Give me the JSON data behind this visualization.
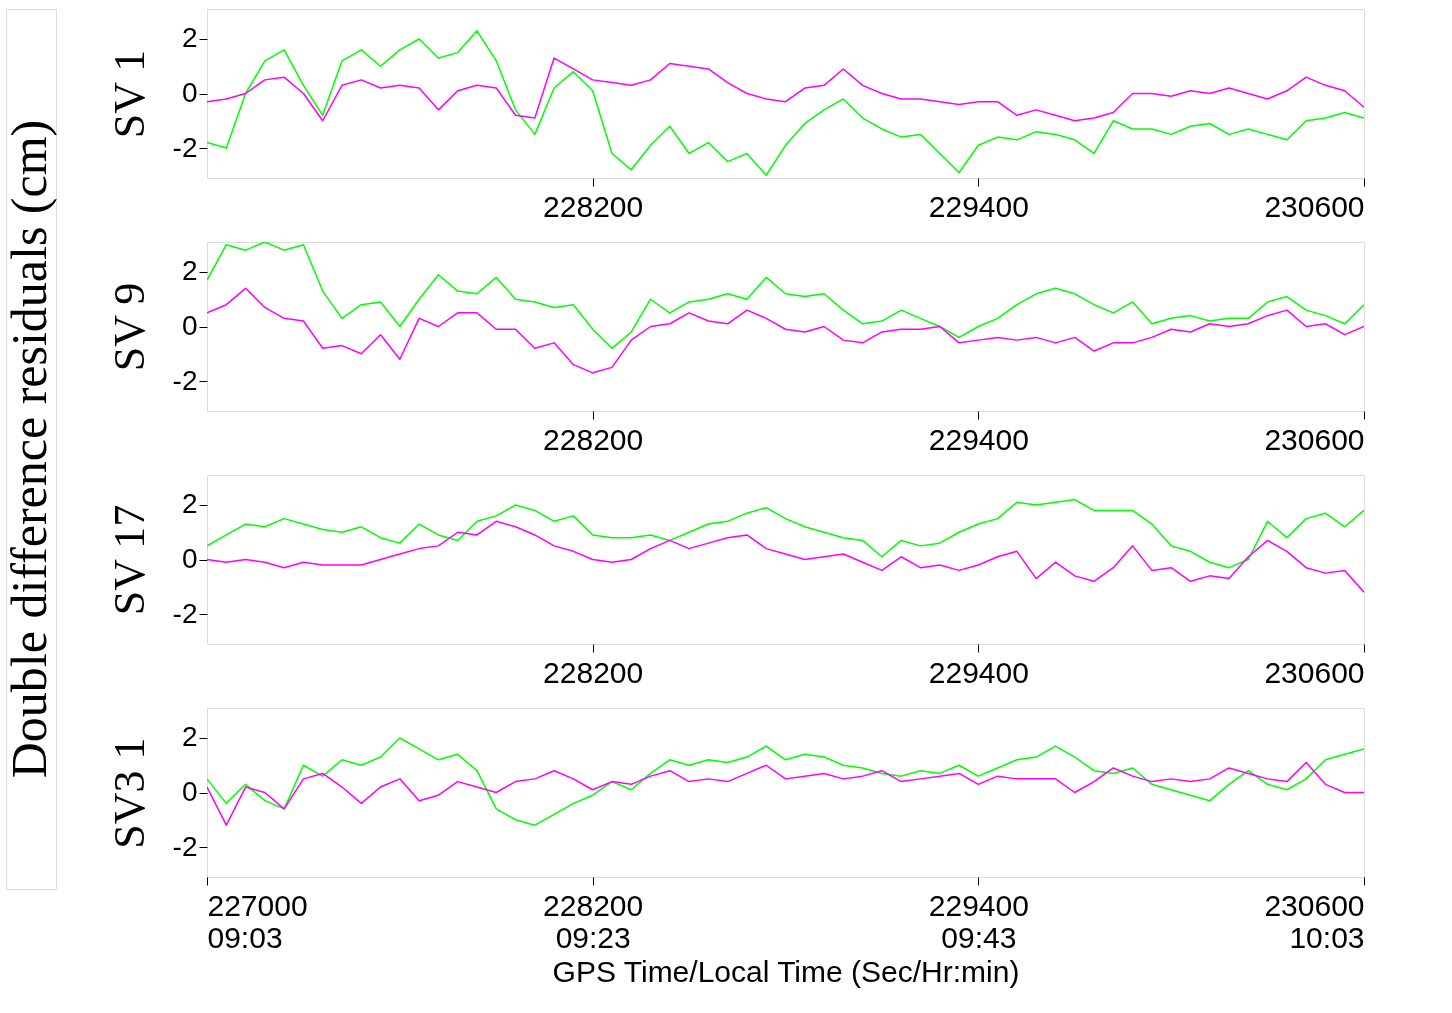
{
  "chart_data": [
    {
      "type": "line",
      "ylabel": "SV 1",
      "annotations": [
        "Double difference residuals (cm)"
      ],
      "xlim": [
        227000,
        230600
      ],
      "xticks": [
        228200,
        229400,
        230600
      ],
      "ylim": [
        -3.1,
        3.1
      ],
      "yticks": [
        -2,
        0,
        2
      ],
      "grid": false,
      "legend": false,
      "x": [
        227000,
        227060,
        227120,
        227180,
        227240,
        227300,
        227360,
        227420,
        227480,
        227540,
        227600,
        227660,
        227720,
        227780,
        227840,
        227900,
        227960,
        228020,
        228080,
        228140,
        228200,
        228260,
        228320,
        228380,
        228440,
        228500,
        228560,
        228620,
        228680,
        228740,
        228800,
        228860,
        228920,
        228980,
        229040,
        229100,
        229160,
        229220,
        229280,
        229340,
        229400,
        229460,
        229520,
        229580,
        229640,
        229700,
        229760,
        229820,
        229880,
        229940,
        230000,
        230060,
        230120,
        230180,
        230240,
        230300,
        230360,
        230420,
        230480,
        230540,
        230600
      ],
      "series": [
        {
          "color": "#00ff00",
          "values": [
            -1.8,
            -2.0,
            0.0,
            1.2,
            1.6,
            0.3,
            -0.8,
            1.2,
            1.6,
            1.0,
            1.6,
            2.0,
            1.3,
            1.5,
            2.3,
            1.2,
            -0.6,
            -1.5,
            0.2,
            0.8,
            0.1,
            -2.2,
            -2.8,
            -1.9,
            -1.2,
            -2.2,
            -1.8,
            -2.5,
            -2.2,
            -3.0,
            -1.9,
            -1.1,
            -0.6,
            -0.2,
            -0.9,
            -1.3,
            -1.6,
            -1.5,
            -2.2,
            -2.9,
            -1.9,
            -1.6,
            -1.7,
            -1.4,
            -1.5,
            -1.7,
            -2.2,
            -1.0,
            -1.3,
            -1.3,
            -1.5,
            -1.2,
            -1.1,
            -1.5,
            -1.3,
            -1.5,
            -1.7,
            -1.0,
            -0.9,
            -0.7,
            -0.9
          ]
        },
        {
          "color": "#ff00ff",
          "values": [
            -0.3,
            -0.2,
            0.0,
            0.5,
            0.6,
            0.0,
            -1.0,
            0.3,
            0.5,
            0.2,
            0.3,
            0.2,
            -0.6,
            0.1,
            0.3,
            0.2,
            -0.8,
            -0.9,
            1.3,
            0.9,
            0.5,
            0.4,
            0.3,
            0.5,
            1.1,
            1.0,
            0.9,
            0.4,
            0.0,
            -0.2,
            -0.3,
            0.2,
            0.3,
            0.9,
            0.3,
            0.0,
            -0.2,
            -0.2,
            -0.3,
            -0.4,
            -0.3,
            -0.3,
            -0.8,
            -0.6,
            -0.8,
            -1.0,
            -0.9,
            -0.7,
            0.0,
            0.0,
            -0.1,
            0.1,
            0.0,
            0.2,
            0.0,
            -0.2,
            0.1,
            0.6,
            0.3,
            0.1,
            -0.5
          ]
        }
      ]
    },
    {
      "type": "line",
      "ylabel": "SV 9",
      "xlim": [
        227000,
        230600
      ],
      "xticks": [
        228200,
        229400,
        230600
      ],
      "ylim": [
        -3.1,
        3.1
      ],
      "yticks": [
        -2,
        0,
        2
      ],
      "grid": false,
      "legend": false,
      "x": [
        227000,
        227060,
        227120,
        227180,
        227240,
        227300,
        227360,
        227420,
        227480,
        227540,
        227600,
        227660,
        227720,
        227780,
        227840,
        227900,
        227960,
        228020,
        228080,
        228140,
        228200,
        228260,
        228320,
        228380,
        228440,
        228500,
        228560,
        228620,
        228680,
        228740,
        228800,
        228860,
        228920,
        228980,
        229040,
        229100,
        229160,
        229220,
        229280,
        229340,
        229400,
        229460,
        229520,
        229580,
        229640,
        229700,
        229760,
        229820,
        229880,
        229940,
        230000,
        230060,
        230120,
        230180,
        230240,
        230300,
        230360,
        230420,
        230480,
        230540,
        230600
      ],
      "series": [
        {
          "color": "#00ff00",
          "values": [
            1.7,
            3.0,
            2.8,
            3.1,
            2.8,
            3.0,
            1.3,
            0.3,
            0.8,
            0.9,
            0.0,
            1.0,
            1.9,
            1.3,
            1.2,
            1.8,
            1.0,
            0.9,
            0.7,
            0.8,
            -0.1,
            -0.8,
            -0.2,
            1.0,
            0.5,
            0.9,
            1.0,
            1.2,
            1.0,
            1.8,
            1.2,
            1.1,
            1.2,
            0.6,
            0.1,
            0.2,
            0.6,
            0.3,
            0.0,
            -0.4,
            0.0,
            0.3,
            0.8,
            1.2,
            1.4,
            1.2,
            0.8,
            0.5,
            0.9,
            0.1,
            0.3,
            0.4,
            0.2,
            0.3,
            0.3,
            0.9,
            1.1,
            0.6,
            0.4,
            0.1,
            0.8
          ]
        },
        {
          "color": "#ff00ff",
          "values": [
            0.5,
            0.8,
            1.4,
            0.7,
            0.3,
            0.2,
            -0.8,
            -0.7,
            -1.0,
            -0.3,
            -1.2,
            0.3,
            0.0,
            0.5,
            0.5,
            -0.1,
            -0.1,
            -0.8,
            -0.6,
            -1.4,
            -1.7,
            -1.5,
            -0.5,
            0.0,
            0.1,
            0.5,
            0.2,
            0.1,
            0.6,
            0.3,
            -0.1,
            -0.2,
            0.0,
            -0.5,
            -0.6,
            -0.2,
            -0.1,
            -0.1,
            0.0,
            -0.6,
            -0.5,
            -0.4,
            -0.5,
            -0.4,
            -0.6,
            -0.4,
            -0.9,
            -0.6,
            -0.6,
            -0.4,
            -0.1,
            -0.2,
            0.1,
            0.0,
            0.1,
            0.4,
            0.6,
            0.0,
            0.1,
            -0.3,
            0.0
          ]
        }
      ]
    },
    {
      "type": "line",
      "ylabel": "SV 17",
      "xlim": [
        227000,
        230600
      ],
      "xticks": [
        228200,
        229400,
        230600
      ],
      "ylim": [
        -3.1,
        3.1
      ],
      "yticks": [
        -2,
        0,
        2
      ],
      "grid": false,
      "legend": false,
      "x": [
        227000,
        227060,
        227120,
        227180,
        227240,
        227300,
        227360,
        227420,
        227480,
        227540,
        227600,
        227660,
        227720,
        227780,
        227840,
        227900,
        227960,
        228020,
        228080,
        228140,
        228200,
        228260,
        228320,
        228380,
        228440,
        228500,
        228560,
        228620,
        228680,
        228740,
        228800,
        228860,
        228920,
        228980,
        229040,
        229100,
        229160,
        229220,
        229280,
        229340,
        229400,
        229460,
        229520,
        229580,
        229640,
        229700,
        229760,
        229820,
        229880,
        229940,
        230000,
        230060,
        230120,
        230180,
        230240,
        230300,
        230360,
        230420,
        230480,
        230540,
        230600
      ],
      "series": [
        {
          "color": "#00ff00",
          "values": [
            0.5,
            0.9,
            1.3,
            1.2,
            1.5,
            1.3,
            1.1,
            1.0,
            1.2,
            0.8,
            0.6,
            1.3,
            0.9,
            0.7,
            1.4,
            1.6,
            2.0,
            1.8,
            1.4,
            1.6,
            0.9,
            0.8,
            0.8,
            0.9,
            0.7,
            1.0,
            1.3,
            1.4,
            1.7,
            1.9,
            1.5,
            1.2,
            1.0,
            0.8,
            0.7,
            0.1,
            0.7,
            0.5,
            0.6,
            1.0,
            1.3,
            1.5,
            2.1,
            2.0,
            2.1,
            2.2,
            1.8,
            1.8,
            1.8,
            1.3,
            0.5,
            0.3,
            -0.1,
            -0.3,
            0.0,
            1.4,
            0.8,
            1.5,
            1.7,
            1.2,
            1.8
          ]
        },
        {
          "color": "#ff00ff",
          "values": [
            0.0,
            -0.1,
            0.0,
            -0.1,
            -0.3,
            -0.1,
            -0.2,
            -0.2,
            -0.2,
            0.0,
            0.2,
            0.4,
            0.5,
            1.0,
            0.9,
            1.4,
            1.2,
            0.9,
            0.5,
            0.3,
            0.0,
            -0.1,
            0.0,
            0.4,
            0.7,
            0.4,
            0.6,
            0.8,
            0.9,
            0.4,
            0.2,
            0.0,
            0.1,
            0.2,
            -0.1,
            -0.4,
            0.1,
            -0.3,
            -0.2,
            -0.4,
            -0.2,
            0.1,
            0.3,
            -0.7,
            -0.1,
            -0.6,
            -0.8,
            -0.3,
            0.5,
            -0.4,
            -0.3,
            -0.8,
            -0.6,
            -0.7,
            0.1,
            0.7,
            0.3,
            -0.3,
            -0.5,
            -0.4,
            -1.2
          ]
        }
      ]
    },
    {
      "type": "line",
      "ylabel": "SV3 1",
      "xlabel": "GPS Time/Local Time (Sec/Hr:min)",
      "xlim": [
        227000,
        230600
      ],
      "xticks": [
        227000,
        228200,
        229400,
        230600
      ],
      "x2lim": [
        9.05,
        10.05
      ],
      "x2ticks": [
        {
          "value": 9.05,
          "label": "09:03"
        },
        {
          "value": 9.383333,
          "label": "09:23"
        },
        {
          "value": 9.716667,
          "label": "09:43"
        },
        {
          "value": 10.05,
          "label": "10:03"
        }
      ],
      "ylim": [
        -3.1,
        3.1
      ],
      "yticks": [
        -2,
        0,
        2
      ],
      "grid": false,
      "legend": false,
      "x": [
        227000,
        227060,
        227120,
        227180,
        227240,
        227300,
        227360,
        227420,
        227480,
        227540,
        227600,
        227660,
        227720,
        227780,
        227840,
        227900,
        227960,
        228020,
        228080,
        228140,
        228200,
        228260,
        228320,
        228380,
        228440,
        228500,
        228560,
        228620,
        228680,
        228740,
        228800,
        228860,
        228920,
        228980,
        229040,
        229100,
        229160,
        229220,
        229280,
        229340,
        229400,
        229460,
        229520,
        229580,
        229640,
        229700,
        229760,
        229820,
        229880,
        229940,
        230000,
        230060,
        230120,
        230180,
        230240,
        230300,
        230360,
        230420,
        230480,
        230540,
        230600
      ],
      "series": [
        {
          "color": "#00ff00",
          "values": [
            0.5,
            -0.4,
            0.3,
            -0.3,
            -0.6,
            1.0,
            0.6,
            1.2,
            1.0,
            1.3,
            2.0,
            1.6,
            1.2,
            1.4,
            0.8,
            -0.6,
            -1.0,
            -1.2,
            -0.8,
            -0.4,
            -0.1,
            0.4,
            0.1,
            0.7,
            1.2,
            1.0,
            1.2,
            1.1,
            1.3,
            1.7,
            1.2,
            1.4,
            1.3,
            1.0,
            0.9,
            0.7,
            0.6,
            0.8,
            0.7,
            1.0,
            0.6,
            0.9,
            1.2,
            1.3,
            1.7,
            1.3,
            0.8,
            0.7,
            0.9,
            0.3,
            0.1,
            -0.1,
            -0.3,
            0.3,
            0.8,
            0.3,
            0.1,
            0.5,
            1.2,
            1.4,
            1.6
          ]
        },
        {
          "color": "#ff00ff",
          "values": [
            0.2,
            -1.2,
            0.2,
            0.0,
            -0.6,
            0.5,
            0.7,
            0.2,
            -0.4,
            0.2,
            0.5,
            -0.3,
            -0.1,
            0.4,
            0.2,
            0.0,
            0.4,
            0.5,
            0.8,
            0.5,
            0.1,
            0.4,
            0.3,
            0.6,
            0.8,
            0.4,
            0.5,
            0.4,
            0.7,
            1.0,
            0.5,
            0.6,
            0.7,
            0.5,
            0.6,
            0.8,
            0.4,
            0.5,
            0.6,
            0.7,
            0.3,
            0.6,
            0.5,
            0.5,
            0.5,
            0.0,
            0.4,
            0.9,
            0.6,
            0.4,
            0.5,
            0.4,
            0.5,
            0.9,
            0.7,
            0.5,
            0.4,
            1.1,
            0.3,
            0.0,
            0.0
          ]
        }
      ]
    }
  ]
}
